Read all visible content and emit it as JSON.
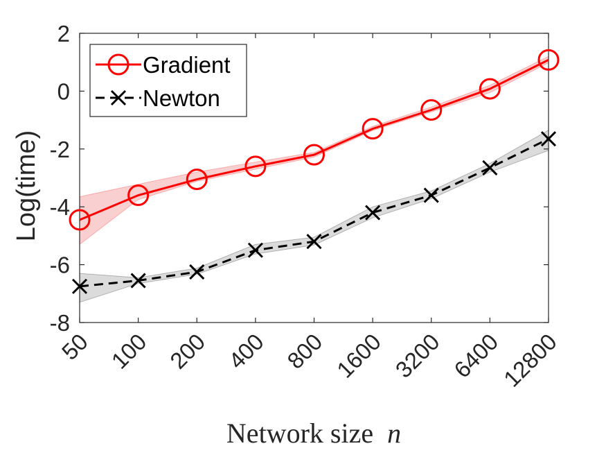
{
  "chart_data": {
    "type": "line",
    "title": "",
    "xlabel": "Network size",
    "xlabel_var": "n",
    "ylabel": "Log(time)",
    "categories": [
      "50",
      "100",
      "200",
      "400",
      "800",
      "1600",
      "3200",
      "6400",
      "12800"
    ],
    "ylim": [
      -8,
      2
    ],
    "yticks": [
      "-8",
      "-6",
      "-4",
      "-2",
      "0",
      "2"
    ],
    "ytick_values": [
      -8,
      -6,
      -4,
      -2,
      0,
      2
    ],
    "grid": false,
    "legend_position": "top-left",
    "series": [
      {
        "name": "Gradient",
        "color": "#ff0000",
        "band_color": "#f4a7a7",
        "marker": "circle",
        "line_style": "solid",
        "values": [
          -4.45,
          -3.6,
          -3.05,
          -2.6,
          -2.2,
          -1.3,
          -0.65,
          0.08,
          1.08
        ],
        "lower": [
          -5.3,
          -3.75,
          -3.12,
          -2.7,
          -2.28,
          -1.36,
          -0.72,
          -0.05,
          0.98
        ],
        "upper": [
          -3.65,
          -3.22,
          -2.8,
          -2.45,
          -2.12,
          -1.22,
          -0.55,
          0.2,
          1.2
        ]
      },
      {
        "name": "Newton",
        "color": "#000000",
        "band_color": "#bdbdbd",
        "marker": "x",
        "line_style": "dashed",
        "values": [
          -6.75,
          -6.55,
          -6.25,
          -5.5,
          -5.2,
          -4.2,
          -3.6,
          -2.65,
          -1.65
        ],
        "lower": [
          -7.3,
          -6.65,
          -6.33,
          -5.63,
          -5.32,
          -4.38,
          -3.72,
          -2.8,
          -2.05
        ],
        "upper": [
          -6.3,
          -6.45,
          -6.12,
          -5.3,
          -5.05,
          -4.0,
          -3.45,
          -2.5,
          -1.35
        ]
      }
    ]
  }
}
